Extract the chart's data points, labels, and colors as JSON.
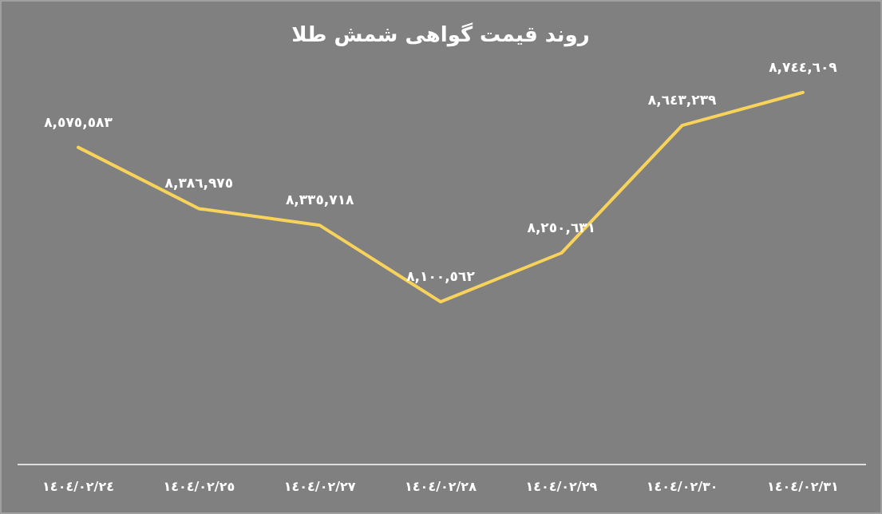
{
  "chart_data": {
    "type": "line",
    "title": "روند قیمت گواهی شمش طلا",
    "categories": [
      "١٤٠٤/٠٢/٢٤",
      "١٤٠٤/٠٢/٢٥",
      "١٤٠٤/٠٢/٢٧",
      "١٤٠٤/٠٢/٢٨",
      "١٤٠٤/٠٢/٢٩",
      "١٤٠٤/٠٢/٣٠",
      "١٤٠٤/٠٢/٣١"
    ],
    "values": [
      8575583,
      8386975,
      8335718,
      8100562,
      8250631,
      8643239,
      8744609
    ],
    "value_labels": [
      "٨,٥٧٥,٥٨٣",
      "٨,٣٨٦,٩٧٥",
      "٨,٣٣٥,٧١٨",
      "٨,١٠٠,٥٦٢",
      "٨,٢٥٠,٦٣١",
      "٨,٦٤٣,٢٣٩",
      "٨,٧٤٤,٦٠٩"
    ],
    "color": "#f7d35c",
    "marker": "none",
    "line_style": "solid",
    "tick_labels": "x"
  }
}
